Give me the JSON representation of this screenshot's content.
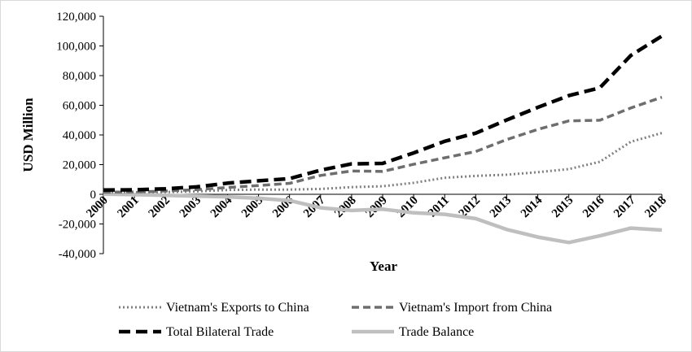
{
  "chart_data": {
    "type": "line",
    "title": "",
    "xlabel": "Year",
    "ylabel": "USD Million",
    "ylim": [
      -40000,
      120000
    ],
    "y_ticks": [
      "120,000",
      "100,000",
      "80,000",
      "60,000",
      "40,000",
      "20,000",
      "0",
      "-20,000",
      "-40,000"
    ],
    "y_tick_values": [
      120000,
      100000,
      80000,
      60000,
      40000,
      20000,
      0,
      -20000,
      -40000
    ],
    "categories": [
      "2000",
      "2001",
      "2002",
      "2003",
      "2004",
      "2005",
      "2006",
      "2007",
      "2008",
      "2009",
      "2010",
      "2011",
      "2012",
      "2013",
      "2014",
      "2015",
      "2016",
      "2017",
      "2018"
    ],
    "grid": false,
    "legend_position": "bottom",
    "series": [
      {
        "name": "Vietnam's Exports to China",
        "style": "dotted",
        "color": "#808080",
        "values": [
          1500,
          1400,
          1500,
          1900,
          2900,
          3200,
          3200,
          3600,
          4800,
          5400,
          7700,
          11100,
          12400,
          13200,
          14900,
          17000,
          21900,
          35400,
          41300
        ]
      },
      {
        "name": "Vietnam's Import from China",
        "style": "dashed",
        "color": "#6e6e6e",
        "values": [
          1400,
          1600,
          2200,
          3100,
          4600,
          5900,
          7400,
          12700,
          15700,
          15400,
          20200,
          24600,
          28800,
          36900,
          43700,
          49500,
          49900,
          58200,
          65400
        ]
      },
      {
        "name": "Total Bilateral Trade",
        "style": "long-dashed",
        "color": "#000000",
        "values": [
          2900,
          3000,
          3700,
          5000,
          7500,
          9100,
          10600,
          16300,
          20500,
          20800,
          27900,
          35700,
          41200,
          50100,
          58600,
          66500,
          71800,
          93600,
          106700
        ]
      },
      {
        "name": "Trade Balance",
        "style": "solid",
        "color": "#bfbfbf",
        "values": [
          100,
          -200,
          -700,
          -1200,
          -1700,
          -2700,
          -4200,
          -9100,
          -10900,
          -10000,
          -12500,
          -13500,
          -16400,
          -23700,
          -28800,
          -32500,
          -28000,
          -22800,
          -24100
        ]
      }
    ]
  }
}
